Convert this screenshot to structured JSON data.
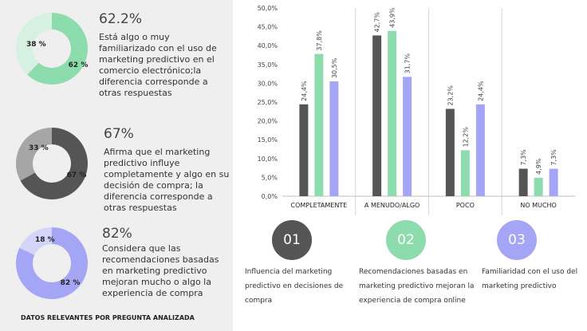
{
  "colors": {
    "dark": "#555555",
    "green": "#8ddcae",
    "purple": "#a5a5f5",
    "green_light": "#d6f1e2",
    "dark_light": "#a6a6a6",
    "purple_light": "#d4d4f8"
  },
  "stats": [
    {
      "percent": "62.2%",
      "text": "Está algo o muy familiarizado con el uso de marketing predictivo en el comercio electrónico;la diferencia corresponde a otras respuestas",
      "donut_major": 62,
      "donut_minor": 38,
      "major_label": "62 %",
      "minor_label": "38 %"
    },
    {
      "percent": "67%",
      "text": "Afirma que el marketing predictivo influye completamente y algo en su decisión de compra; la diferencia corresponde a otras respuestas",
      "donut_major": 67,
      "donut_minor": 33,
      "major_label": "67 %",
      "minor_label": "33 %"
    },
    {
      "percent": "82%",
      "text": "Considera que las recomendaciones basadas en marketing predictivo mejoran mucho o algo la experiencia de compra",
      "donut_major": 82,
      "donut_minor": 18,
      "major_label": "82 %",
      "minor_label": "18 %"
    }
  ],
  "footer_note": "DATOS RELEVANTES POR PREGUNTA ANALIZADA",
  "chart_data": {
    "type": "bar",
    "categories": [
      "COMPLETAMENTE",
      "A MENUDO/ALGO",
      "POCO",
      "NO MUCHO"
    ],
    "series": [
      {
        "name": "Influencia del marketing predictivo en decisiones de compra",
        "values": [
          24.4,
          42.7,
          23.2,
          7.3
        ],
        "labels": [
          "24,4%",
          "42,7%",
          "23,2%",
          "7,3%"
        ]
      },
      {
        "name": "Recomendaciones basadas en marketing predictivo mejoran la experiencia de compra online",
        "values": [
          37.8,
          43.9,
          12.2,
          4.9
        ],
        "labels": [
          "37,8%",
          "43,9%",
          "12,2%",
          "4,9%"
        ]
      },
      {
        "name": "Familiaridad con el uso del marketing predictivo",
        "values": [
          30.5,
          31.7,
          24.4,
          7.3
        ],
        "labels": [
          "30,5%",
          "31,7%",
          "24,4%",
          "7,3%"
        ]
      }
    ],
    "y_ticks": [
      0,
      5,
      10,
      15,
      20,
      25,
      30,
      35,
      40,
      45,
      50
    ],
    "y_tick_labels": [
      "0,0%",
      "5,0%",
      "10,0%",
      "15,0%",
      "20,0%",
      "25,0%",
      "30,0%",
      "35,0%",
      "40,0%",
      "45,0%",
      "50,0%"
    ],
    "ylim": [
      0,
      50
    ],
    "grid": false
  },
  "legend": [
    {
      "number": "01",
      "text": "Influencia del marketing predictivo en decisiones de compra"
    },
    {
      "number": "02",
      "text": "Recomendaciones basadas en marketing predictivo mejoran la experiencia de compra online"
    },
    {
      "number": "03",
      "text": "Familiaridad con el uso del marketing predictivo"
    }
  ]
}
